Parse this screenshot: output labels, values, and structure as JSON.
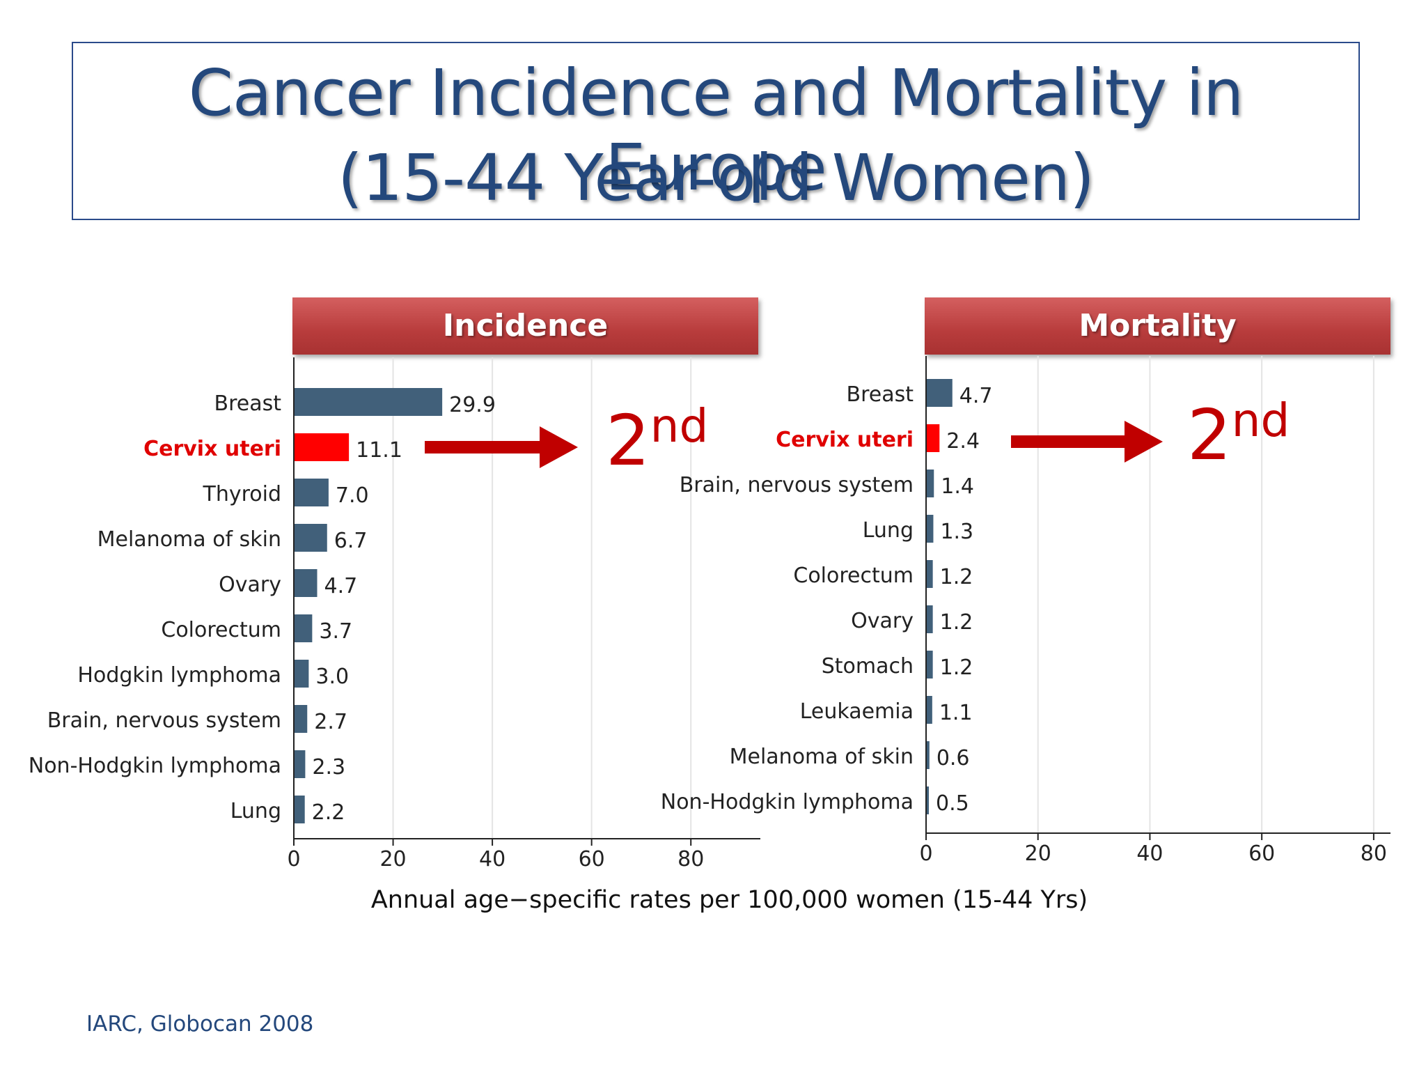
{
  "title": {
    "line1": "Cancer Incidence and Mortality in Europe",
    "line2": "(15-44 Year-old Women)"
  },
  "source": "IARC, Globocan 2008",
  "xlabel": "Annual age−specific rates per 100,000 women (15-44 Yrs)",
  "rank": {
    "number": "2",
    "suffix": "nd"
  },
  "colors": {
    "bar": "#41607a",
    "highlight": "#ff0000",
    "highlight_text": "#e00000",
    "arrow": "#c00000"
  },
  "chart_data": [
    {
      "type": "bar",
      "orientation": "horizontal",
      "title": "Incidence",
      "categories": [
        "Breast",
        "Cervix uteri",
        "Thyroid",
        "Melanoma of skin",
        "Ovary",
        "Colorectum",
        "Hodgkin lymphoma",
        "Brain, nervous system",
        "Non-Hodgkin lymphoma",
        "Lung"
      ],
      "values": [
        29.9,
        11.1,
        7.0,
        6.7,
        4.7,
        3.7,
        3.0,
        2.7,
        2.3,
        2.2
      ],
      "value_labels": [
        "29.9",
        "11.1",
        "7.0",
        "6.7",
        "4.7",
        "3.7",
        "3.0",
        "2.7",
        "2.3",
        "2.2"
      ],
      "highlight": "Cervix uteri",
      "xlim": [
        0,
        94
      ],
      "xticks": [
        0,
        20,
        40,
        60,
        80
      ],
      "grid": true
    },
    {
      "type": "bar",
      "orientation": "horizontal",
      "title": "Mortality",
      "categories": [
        "Breast",
        "Cervix uteri",
        "Brain, nervous system",
        "Lung",
        "Colorectum",
        "Ovary",
        "Stomach",
        "Leukaemia",
        "Melanoma of skin",
        "Non-Hodgkin lymphoma"
      ],
      "values": [
        4.7,
        2.4,
        1.4,
        1.3,
        1.2,
        1.2,
        1.2,
        1.1,
        0.6,
        0.5
      ],
      "value_labels": [
        "4.7",
        "2.4",
        "1.4",
        "1.3",
        "1.2",
        "1.2",
        "1.2",
        "1.1",
        "0.6",
        "0.5"
      ],
      "highlight": "Cervix uteri",
      "xlim": [
        0,
        83
      ],
      "xticks": [
        0,
        20,
        40,
        60,
        80
      ],
      "grid": true
    }
  ]
}
